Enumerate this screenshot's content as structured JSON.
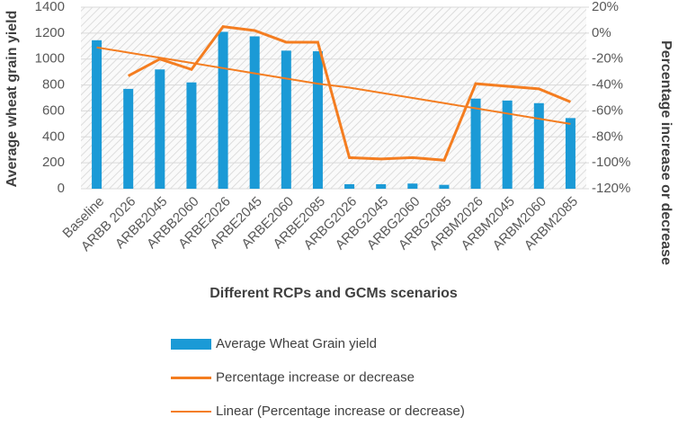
{
  "chart_data": {
    "type": "bar",
    "x_label": "Different RCPs and GCMs scenarios",
    "y_label": "Average wheat grain yield",
    "y2_label": "Percentage increase or decrease",
    "categories": [
      "Baseline",
      "ARBB 2026",
      "ARBB2045",
      "ARBB2060",
      "ARBE2026",
      "ARBE2045",
      "ARBE2060",
      "ARBE2085",
      "ARBG2026",
      "ARBG2045",
      "ARBG2060",
      "ARBG2085",
      "ARBM2026",
      "ARBM2045",
      "ARBM2060",
      "ARBM2085"
    ],
    "series": [
      {
        "name": "Average Wheat Grain yield",
        "type": "bar",
        "color": "#1b9ad6",
        "values": [
          1145,
          770,
          920,
          820,
          1210,
          1175,
          1065,
          1060,
          35,
          35,
          40,
          30,
          695,
          680,
          660,
          545
        ]
      },
      {
        "name": "Percentage increase or decrease",
        "type": "line",
        "axis": "y2",
        "color": "#f47d20",
        "values": [
          null,
          -33,
          -20,
          -28,
          5,
          2,
          -7,
          -7,
          -96,
          -97,
          -96,
          -98,
          -39,
          -41,
          -43,
          -53
        ]
      },
      {
        "name": "Linear (Percentage increase or decrease)",
        "type": "line",
        "axis": "y2",
        "color": "#f47d20",
        "values": [
          -11,
          -15,
          -19,
          -23,
          -27,
          -31,
          -35,
          -39,
          -42,
          -46,
          -50,
          -54,
          -58,
          -62,
          -66,
          -70
        ]
      }
    ],
    "ylim": [
      0,
      1400
    ],
    "yticks": [
      0,
      200,
      400,
      600,
      800,
      1000,
      1200,
      1400
    ],
    "y2lim": [
      -120,
      20
    ],
    "y2ticks": [
      {
        "value": 20,
        "label": "20%"
      },
      {
        "value": 0,
        "label": "0%"
      },
      {
        "value": -20,
        "label": "-20%"
      },
      {
        "value": -40,
        "label": "-40%"
      },
      {
        "value": -60,
        "label": "-60%"
      },
      {
        "value": -80,
        "label": "-80%"
      },
      {
        "value": -100,
        "label": "-100%"
      },
      {
        "value": -120,
        "label": "-120%"
      }
    ],
    "grid": true
  }
}
